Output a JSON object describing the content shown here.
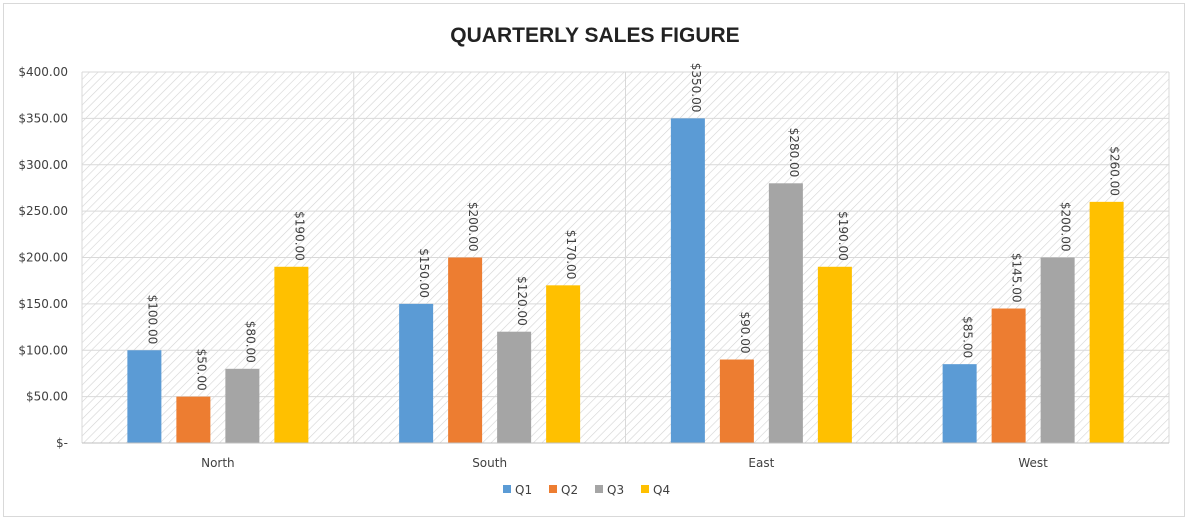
{
  "chart_data": {
    "type": "bar",
    "title": "QUARTERLY SALES FIGURE",
    "xlabel": "",
    "ylabel": "",
    "categories": [
      "North",
      "South",
      "East",
      "West"
    ],
    "series": [
      {
        "name": "Q1",
        "color": "#5B9BD5",
        "values": [
          100,
          150,
          350,
          85
        ]
      },
      {
        "name": "Q2",
        "color": "#ED7D31",
        "values": [
          50,
          200,
          90,
          145
        ]
      },
      {
        "name": "Q3",
        "color": "#A5A5A5",
        "values": [
          80,
          120,
          280,
          200
        ]
      },
      {
        "name": "Q4",
        "color": "#FFC000",
        "values": [
          190,
          170,
          190,
          260
        ]
      }
    ],
    "ylim": [
      0,
      400
    ],
    "yticks": [
      0,
      50,
      100,
      150,
      200,
      250,
      300,
      350,
      400
    ],
    "ytick_labels": [
      "$-",
      "$50.00",
      "$100.00",
      "$150.00",
      "$200.00",
      "$250.00",
      "$300.00",
      "$350.00",
      "$400.00"
    ],
    "data_labels": [
      [
        "$100.00",
        "$150.00",
        "$350.00",
        "$85.00"
      ],
      [
        "$50.00",
        "$200.00",
        "$90.00",
        "$145.00"
      ],
      [
        "$80.00",
        "$120.00",
        "$280.00",
        "$200.00"
      ],
      [
        "$190.00",
        "$170.00",
        "$190.00",
        "$260.00"
      ]
    ],
    "grid": true,
    "legend_position": "bottom"
  }
}
